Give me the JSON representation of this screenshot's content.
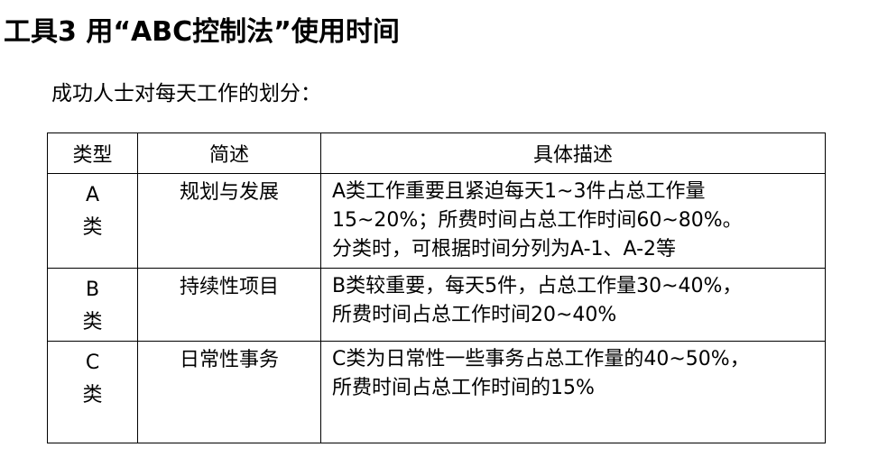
{
  "title": "工具3 用“ABC控制法”使用时间",
  "subtitle": "成功人士对每天工作的划分：",
  "table": {
    "headers": [
      "类型",
      "简述",
      "具体描述"
    ],
    "rows": [
      {
        "type": [
          "A",
          "类"
        ],
        "brief": "规划与发展",
        "desc": [
          "A类工作重要且紧迫每天1~3件占总工作量",
          "15~20%；所费时间占总工作时间60~80%。",
          "分类时，可根据时间分列为A-1、A-2等"
        ]
      },
      {
        "type": [
          "B",
          "类"
        ],
        "brief": "持续性项目",
        "desc": [
          "B类较重要，每天5件，占总工作量30~40%，",
          "所费时间占总工作时间20~40%"
        ]
      },
      {
        "type": [
          "C",
          "类"
        ],
        "brief": "日常性事务",
        "desc": [
          "C类为日常性一些事务占总工作量的40~50%，",
          "所费时间占总工作时间的15%"
        ]
      }
    ]
  }
}
